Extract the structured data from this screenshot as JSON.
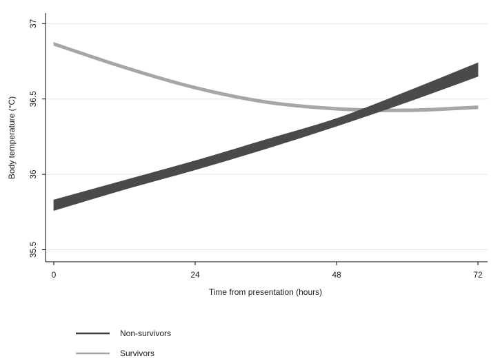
{
  "chart_data": {
    "type": "area",
    "title": "",
    "xlabel": "Time from presentation (hours)",
    "ylabel": "Body temperature (°C)",
    "xlim": [
      0,
      72
    ],
    "ylim": [
      35.42,
      37.07
    ],
    "xticks": [
      0,
      24,
      48,
      72
    ],
    "xtick_labels": [
      "0",
      "24",
      "48",
      "72"
    ],
    "yticks": [
      35.5,
      36,
      36.5,
      37
    ],
    "ytick_labels": [
      "35.5",
      "36",
      "36.5",
      "37"
    ],
    "grid": true,
    "legend_position": "bottom-left",
    "x": [
      0,
      12,
      24,
      36,
      48,
      60,
      72
    ],
    "series": [
      {
        "name": "Non-survivors",
        "color": "#4a4a4a",
        "line_color": "#3c3c3c",
        "lower": [
          35.76,
          35.9,
          36.03,
          36.17,
          36.32,
          36.48,
          36.65
        ],
        "upper": [
          35.83,
          35.96,
          36.09,
          36.23,
          36.37,
          36.55,
          36.74
        ]
      },
      {
        "name": "Survivors",
        "color": "#a6a6a6",
        "line_color": "#a6a6a6",
        "lower": [
          36.855,
          36.7,
          36.565,
          36.47,
          36.425,
          36.415,
          36.435
        ],
        "upper": [
          36.875,
          36.72,
          36.585,
          36.49,
          36.445,
          36.435,
          36.455
        ]
      }
    ]
  }
}
